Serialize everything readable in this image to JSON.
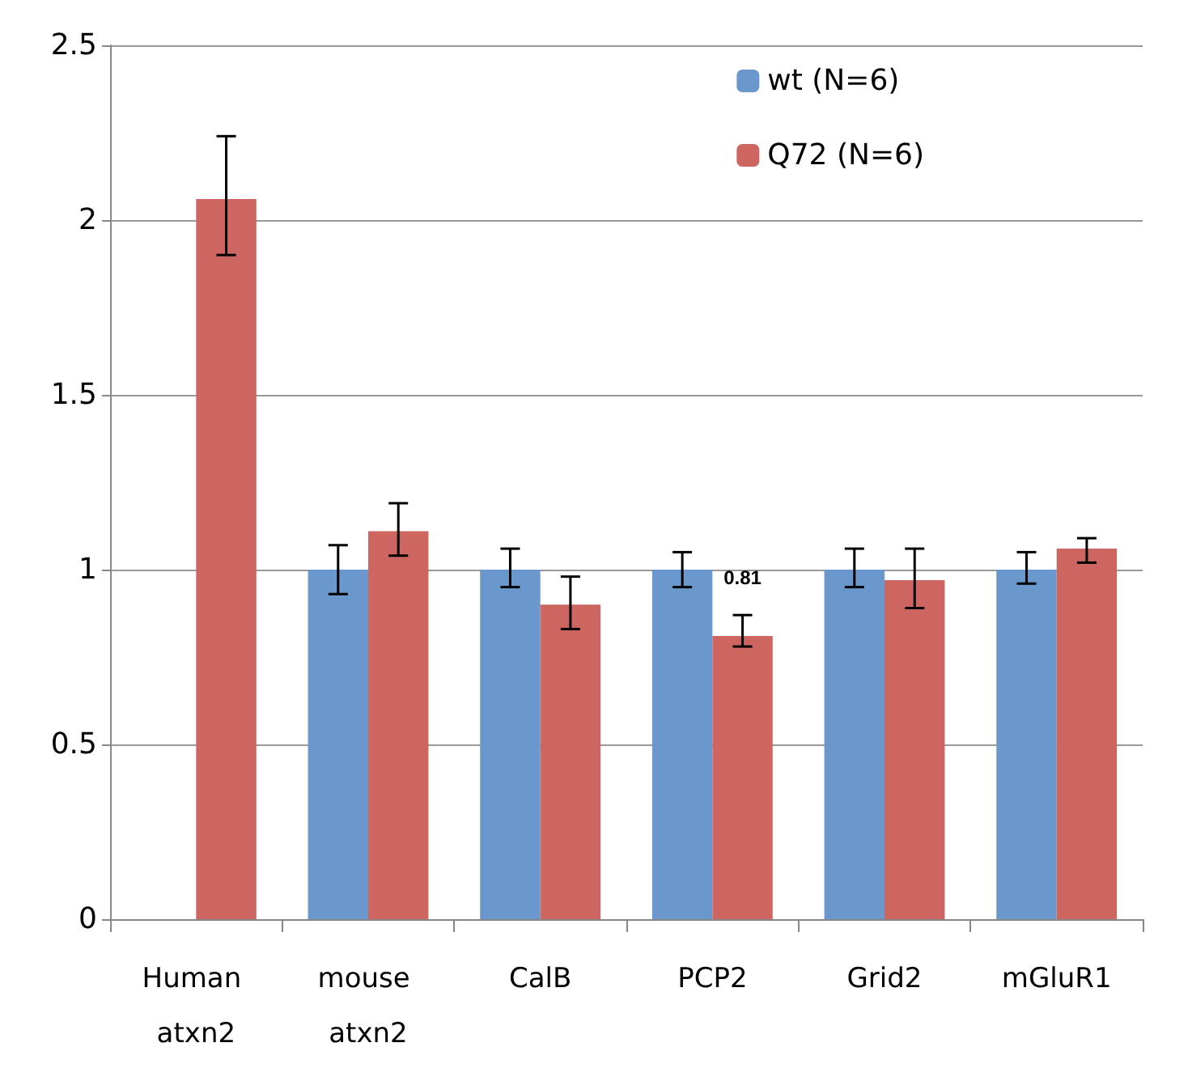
{
  "chart_data": {
    "type": "bar",
    "categories": [
      "Human atxn2",
      "mouse atxn2",
      "CalB",
      "PCP2",
      "Grid2",
      "mGluR1"
    ],
    "series": [
      {
        "name": "wt (N=6)",
        "color": "#6a98cd",
        "values": [
          0,
          1,
          1,
          1,
          1,
          1
        ],
        "errors": [
          null,
          [
            0.93,
            1.07
          ],
          [
            0.95,
            1.06
          ],
          [
            0.95,
            1.05
          ],
          [
            0.95,
            1.06
          ],
          [
            0.96,
            1.05
          ]
        ]
      },
      {
        "name": "Q72 (N=6)",
        "color": "#cd6660",
        "values": [
          2.06,
          1.11,
          0.9,
          0.81,
          0.97,
          1.06
        ],
        "errors": [
          [
            1.9,
            2.24
          ],
          [
            1.04,
            1.19
          ],
          [
            0.83,
            0.98
          ],
          [
            0.78,
            0.87
          ],
          [
            0.89,
            1.06
          ],
          [
            1.02,
            1.09
          ]
        ],
        "value_labels": [
          null,
          null,
          null,
          "0.81",
          null,
          null
        ]
      }
    ],
    "ylim": [
      0,
      2.5
    ],
    "yticks": [
      0,
      0.5,
      1,
      1.5,
      2,
      2.5
    ],
    "grid": "y",
    "legend": "top right"
  }
}
